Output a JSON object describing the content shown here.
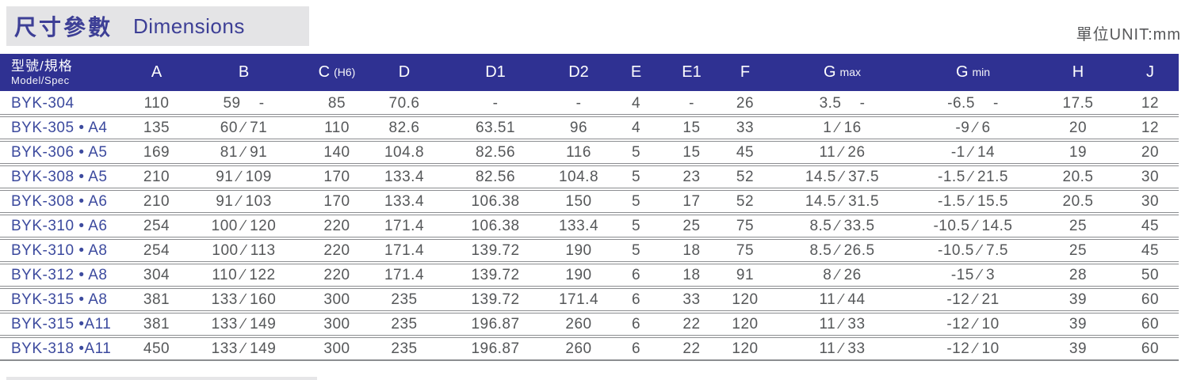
{
  "title": {
    "zh": "尺寸參數",
    "en": "Dimensions"
  },
  "unit_label": "單位UNIT:mm",
  "colors": {
    "header_bg": "#2f3192",
    "title_text": "#3d3f96",
    "title_box_bg": "#e4e4e6",
    "model_text": "#3c4a9e",
    "body_text": "#555759",
    "rule": "#8b8d90"
  },
  "table": {
    "columns": [
      {
        "id": "model",
        "label": "型號/規格",
        "sub": "Model/Spec"
      },
      {
        "id": "A",
        "label": "A"
      },
      {
        "id": "B",
        "label": "B"
      },
      {
        "id": "C",
        "label": "C",
        "sub": "(H6)"
      },
      {
        "id": "D",
        "label": "D"
      },
      {
        "id": "D1",
        "label": "D1"
      },
      {
        "id": "D2",
        "label": "D2"
      },
      {
        "id": "E",
        "label": "E"
      },
      {
        "id": "E1",
        "label": "E1"
      },
      {
        "id": "F",
        "label": "F"
      },
      {
        "id": "Gmax",
        "label": "G",
        "sub": "max"
      },
      {
        "id": "Gmin",
        "label": "G",
        "sub": "min"
      },
      {
        "id": "H",
        "label": "H"
      },
      {
        "id": "J",
        "label": "J"
      }
    ],
    "rows": [
      {
        "model": "BYK-304",
        "values": [
          "110",
          "59    -",
          "85",
          "70.6",
          "-",
          "-",
          "4",
          "-",
          "26",
          "3.5    -",
          "-6.5    -",
          "17.5",
          "12"
        ]
      },
      {
        "model": "BYK-305 • A4",
        "values": [
          "135",
          "60 ∕ 71",
          "110",
          "82.6",
          "63.51",
          "96",
          "4",
          "15",
          "33",
          "1 ∕ 16",
          "-9 ∕ 6",
          "20",
          "12"
        ]
      },
      {
        "model": "BYK-306 • A5",
        "values": [
          "169",
          "81 ∕ 91",
          "140",
          "104.8",
          "82.56",
          "116",
          "5",
          "15",
          "45",
          "11 ∕ 26",
          "-1 ∕ 14",
          "19",
          "20"
        ]
      },
      {
        "model": "BYK-308 • A5",
        "values": [
          "210",
          "91 ∕ 109",
          "170",
          "133.4",
          "82.56",
          "104.8",
          "5",
          "23",
          "52",
          "14.5 ∕ 37.5",
          "-1.5 ∕ 21.5",
          "20.5",
          "30"
        ]
      },
      {
        "model": "BYK-308 • A6",
        "values": [
          "210",
          "91 ∕ 103",
          "170",
          "133.4",
          "106.38",
          "150",
          "5",
          "17",
          "52",
          "14.5 ∕ 31.5",
          "-1.5 ∕ 15.5",
          "20.5",
          "30"
        ]
      },
      {
        "model": "BYK-310 • A6",
        "values": [
          "254",
          "100 ∕ 120",
          "220",
          "171.4",
          "106.38",
          "133.4",
          "5",
          "25",
          "75",
          "8.5 ∕ 33.5",
          "-10.5 ∕ 14.5",
          "25",
          "45"
        ]
      },
      {
        "model": "BYK-310 • A8",
        "values": [
          "254",
          "100 ∕ 113",
          "220",
          "171.4",
          "139.72",
          "190",
          "5",
          "18",
          "75",
          "8.5 ∕ 26.5",
          "-10.5 ∕ 7.5",
          "25",
          "45"
        ]
      },
      {
        "model": "BYK-312 • A8",
        "values": [
          "304",
          "110 ∕ 122",
          "220",
          "171.4",
          "139.72",
          "190",
          "6",
          "18",
          "91",
          "8 ∕ 26",
          "-15 ∕ 3",
          "28",
          "50"
        ]
      },
      {
        "model": "BYK-315 • A8",
        "values": [
          "381",
          "133 ∕ 160",
          "300",
          "235",
          "139.72",
          "171.4",
          "6",
          "33",
          "120",
          "11 ∕ 44",
          "-12 ∕ 21",
          "39",
          "60"
        ]
      },
      {
        "model": "BYK-315 •A11",
        "values": [
          "381",
          "133 ∕ 149",
          "300",
          "235",
          "196.87",
          "260",
          "6",
          "22",
          "120",
          "11 ∕ 33",
          "-12 ∕ 10",
          "39",
          "60"
        ]
      },
      {
        "model": "BYK-318 •A11",
        "values": [
          "450",
          "133 ∕ 149",
          "300",
          "235",
          "196.87",
          "260",
          "6",
          "22",
          "120",
          "11 ∕ 33",
          "-12 ∕ 10",
          "39",
          "60"
        ]
      }
    ]
  }
}
